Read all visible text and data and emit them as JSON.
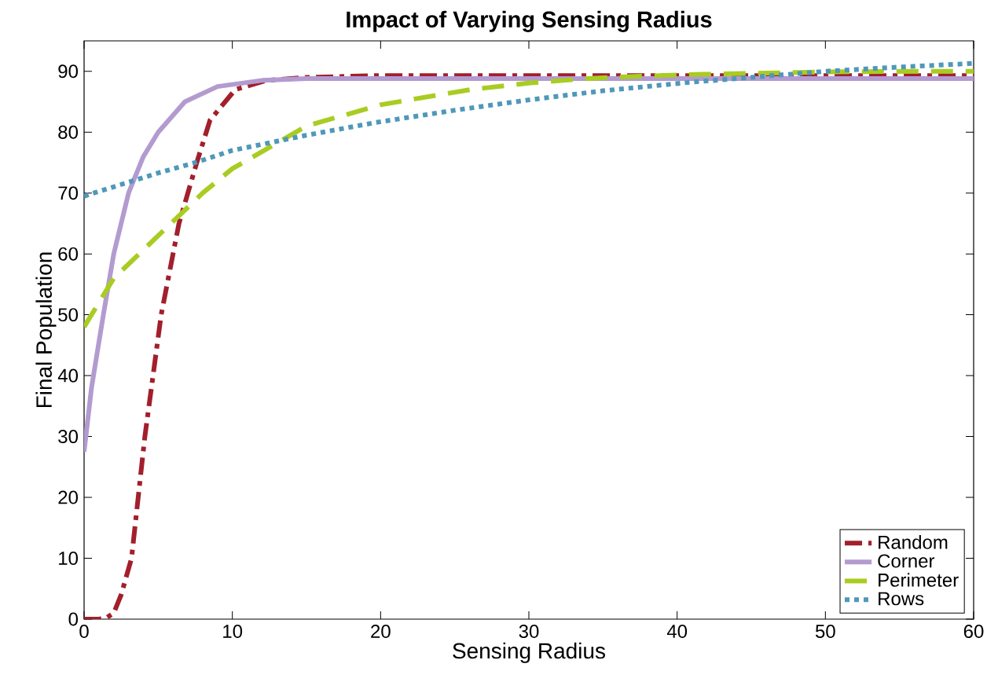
{
  "chart_data": {
    "type": "line",
    "title": "Impact of Varying Sensing Radius",
    "xlabel": "Sensing Radius",
    "ylabel": "Final Population",
    "xlim": [
      0,
      60
    ],
    "ylim": [
      0,
      95
    ],
    "xticks": [
      0,
      10,
      20,
      30,
      40,
      50,
      60
    ],
    "yticks": [
      0,
      10,
      20,
      30,
      40,
      50,
      60,
      70,
      80,
      90
    ],
    "legend": "bottom right",
    "grid": false,
    "marker": "none",
    "series": [
      {
        "name": "Random",
        "color": "#a21f2b",
        "line_style": "dashdot",
        "x": [
          0,
          1,
          1.5,
          2,
          2.5,
          3.2,
          4.1,
          5.2,
          6.4,
          7.6,
          8.5,
          10.2,
          12.3,
          15,
          20,
          30,
          40,
          50,
          60
        ],
        "values": [
          0,
          0,
          0.2,
          1,
          4,
          10,
          30,
          50,
          65,
          75,
          82,
          87,
          88.5,
          89,
          89.3,
          89.3,
          89.3,
          89.3,
          89.3
        ]
      },
      {
        "name": "Corner",
        "color": "#b39bd0",
        "line_style": "solid",
        "x": [
          0,
          0.5,
          1.3,
          2,
          3,
          4,
          5,
          6.8,
          9,
          12,
          15,
          20,
          30,
          40,
          50,
          60
        ],
        "values": [
          27.5,
          38,
          50,
          60,
          70,
          76,
          80,
          85,
          87.5,
          88.5,
          88.8,
          88.8,
          88.8,
          88.8,
          88.8,
          88.8
        ]
      },
      {
        "name": "Perimeter",
        "color": "#a9cc22",
        "line_style": "dashed",
        "x": [
          0,
          2,
          5,
          8,
          10,
          15,
          20,
          22.4,
          26.1,
          30.1,
          33.9,
          37.5,
          41.7,
          46,
          50,
          57,
          60
        ],
        "values": [
          48,
          56,
          63,
          70,
          74,
          81,
          84.5,
          85.5,
          87,
          88.1,
          88.8,
          89.2,
          89.5,
          89.7,
          89.9,
          90,
          90
        ]
      },
      {
        "name": "Rows",
        "color": "#4f98b9",
        "line_style": "dotted",
        "x": [
          0,
          5,
          7.5,
          10,
          15,
          19.7,
          25,
          30,
          35,
          40.9,
          45,
          50,
          55,
          60
        ],
        "values": [
          69.5,
          73.3,
          75,
          77,
          79.5,
          81.6,
          83.6,
          85.3,
          86.8,
          88.2,
          89,
          90,
          90.7,
          91.3
        ]
      }
    ]
  }
}
